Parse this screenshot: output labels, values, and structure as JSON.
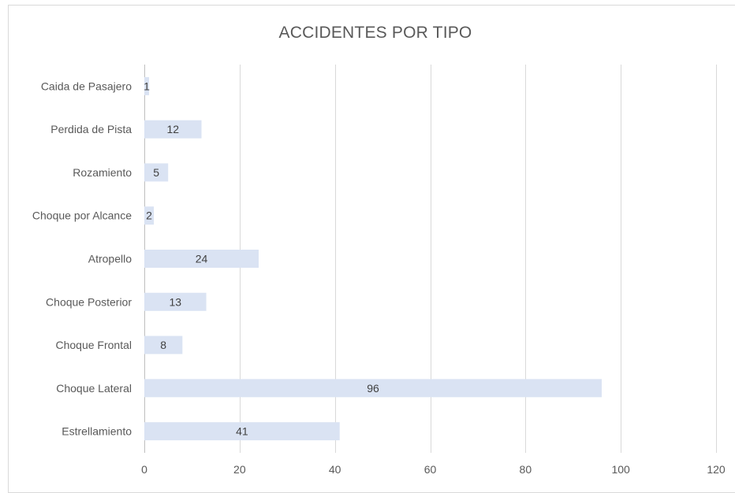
{
  "chart_data": {
    "type": "bar",
    "orientation": "horizontal",
    "title": "ACCIDENTES POR TIPO",
    "xlabel": "",
    "ylabel": "",
    "categories": [
      "Caida de Pasajero",
      "Perdida de Pista",
      "Rozamiento",
      "Choque por Alcance",
      "Atropello",
      "Choque Posterior",
      "Choque Frontal",
      "Choque Lateral",
      "Estrellamiento"
    ],
    "values": [
      1,
      12,
      5,
      2,
      24,
      13,
      8,
      96,
      41
    ],
    "data_labels": true,
    "xlim": [
      0,
      120
    ],
    "xticks": [
      0,
      20,
      40,
      60,
      80,
      100,
      120
    ],
    "grid": "vertical",
    "legend": "none",
    "colors": {
      "bar": "#dae3f3",
      "gridline": "#d9d9d9",
      "text": "#595959"
    }
  }
}
